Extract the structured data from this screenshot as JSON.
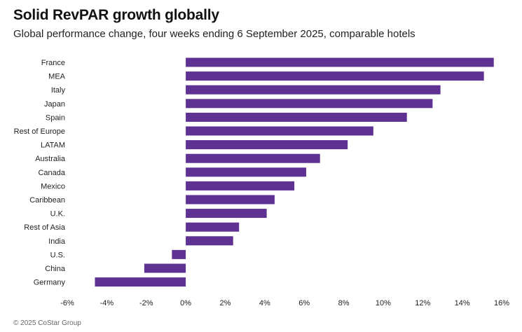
{
  "header": {
    "title": "Solid RevPAR growth globally",
    "subtitle": "Global performance change, four weeks ending 6 September 2025, comparable hotels"
  },
  "footer": {
    "copyright": "© 2025 CoStar Group"
  },
  "colors": {
    "bar": "#5e3192"
  },
  "chart_data": {
    "type": "bar",
    "orientation": "horizontal",
    "title": "Solid RevPAR growth globally",
    "subtitle": "Global performance change, four weeks ending 6 September 2025, comparable hotels",
    "xlabel": "",
    "ylabel": "",
    "categories": [
      "France",
      "MEA",
      "Italy",
      "Japan",
      "Spain",
      "Rest of Europe",
      "LATAM",
      "Australia",
      "Canada",
      "Mexico",
      "Caribbean",
      "U.K.",
      "Rest of Asia",
      "India",
      "U.S.",
      "China",
      "Germany"
    ],
    "values": [
      15.6,
      15.1,
      12.9,
      12.5,
      11.2,
      9.5,
      8.2,
      6.8,
      6.1,
      5.5,
      4.5,
      4.1,
      2.7,
      2.4,
      -0.7,
      -2.1,
      -4.6
    ],
    "unit": "%",
    "xlim": [
      -6,
      16
    ],
    "xticks": [
      -6,
      -4,
      -2,
      0,
      2,
      4,
      6,
      8,
      10,
      12,
      14,
      16
    ],
    "xtick_labels": [
      "-6%",
      "-4%",
      "-2%",
      "0%",
      "2%",
      "4%",
      "6%",
      "8%",
      "10%",
      "12%",
      "14%",
      "16%"
    ],
    "grid": false,
    "legend": "none"
  }
}
